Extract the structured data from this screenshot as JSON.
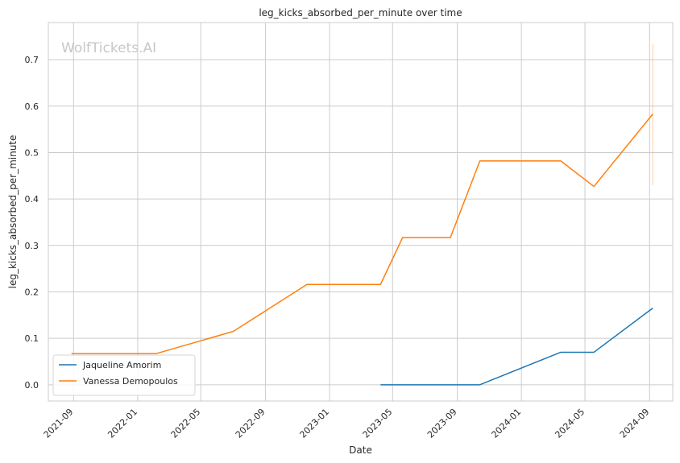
{
  "watermark": "WolfTickets.AI",
  "chart_data": {
    "type": "line",
    "title": "leg_kicks_absorbed_per_minute over time",
    "xlabel": "Date",
    "ylabel": "leg_kicks_absorbed_per_minute",
    "xlim": [
      "2021-07-15",
      "2024-10-15"
    ],
    "ylim": [
      -0.035,
      0.78
    ],
    "x_ticks": [
      "2021-09",
      "2022-01",
      "2022-05",
      "2022-09",
      "2023-01",
      "2023-05",
      "2023-09",
      "2024-01",
      "2024-05",
      "2024-09"
    ],
    "y_ticks": [
      "0.0",
      "0.1",
      "0.2",
      "0.3",
      "0.4",
      "0.5",
      "0.6",
      "0.7"
    ],
    "grid": true,
    "legend_position": "lower-left",
    "series": [
      {
        "name": "Jaqueline Amorim",
        "color": "#1f77b4",
        "x": [
          "2023-04-08",
          "2023-10-14",
          "2024-03-16",
          "2024-05-18",
          "2024-09-07"
        ],
        "y": [
          0.0,
          0.0,
          0.07,
          0.07,
          0.165
        ]
      },
      {
        "name": "Vanessa Demopoulos",
        "color": "#ff7f0e",
        "x": [
          "2021-08-28",
          "2022-02-05",
          "2022-07-02",
          "2022-11-19",
          "2023-04-08",
          "2023-05-20",
          "2023-08-19",
          "2023-10-14",
          "2024-03-16",
          "2024-05-18",
          "2024-09-07"
        ],
        "y": [
          0.067,
          0.067,
          0.115,
          0.216,
          0.216,
          0.317,
          0.317,
          0.482,
          0.482,
          0.427,
          0.583
        ]
      }
    ],
    "error_band": {
      "series": "Vanessa Demopoulos",
      "x": "2024-09-07",
      "y_low": 0.43,
      "y_high": 0.735,
      "color": "#ff7f0e"
    }
  }
}
